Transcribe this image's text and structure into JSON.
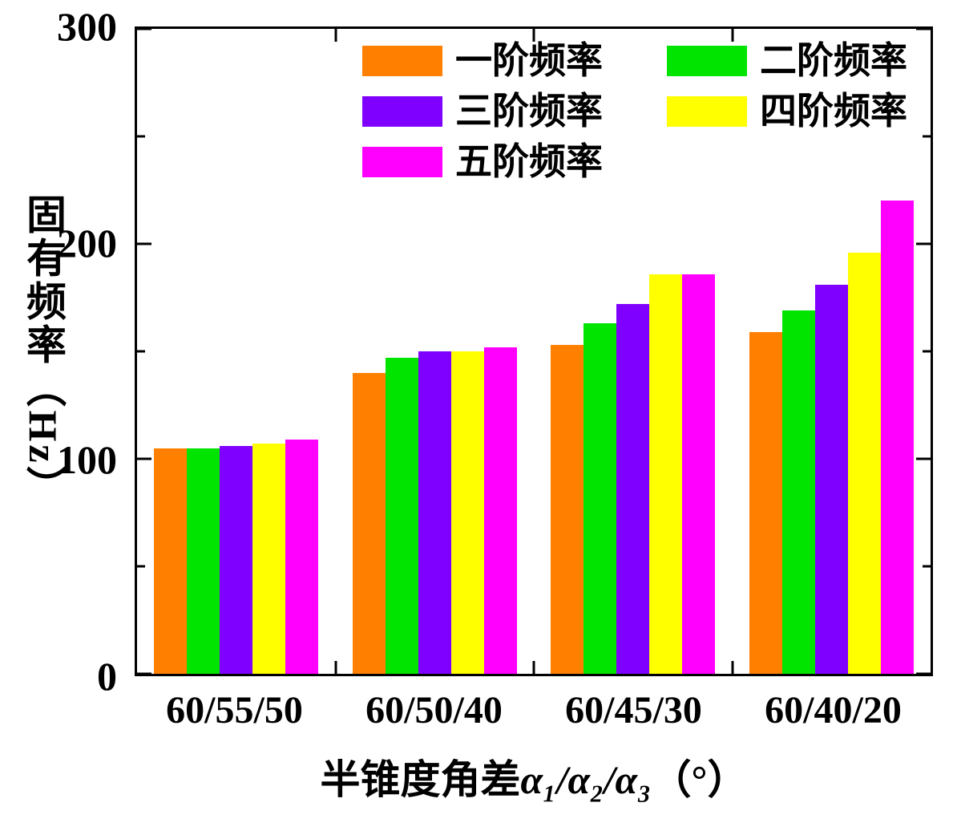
{
  "chart_data": {
    "type": "bar",
    "title": "",
    "categories": [
      "60/55/50",
      "60/50/40",
      "60/45/30",
      "60/40/20"
    ],
    "series": [
      {
        "name": "一阶频率",
        "color": "#FF8000",
        "values": [
          105,
          140,
          153,
          159
        ]
      },
      {
        "name": "二阶频率",
        "color": "#00E400",
        "values": [
          105,
          147,
          163,
          169
        ]
      },
      {
        "name": "三阶频率",
        "color": "#7F00FF",
        "values": [
          106,
          150,
          172,
          181
        ]
      },
      {
        "name": "四阶频率",
        "color": "#FFFF00",
        "values": [
          107,
          150,
          186,
          196
        ]
      },
      {
        "name": "五阶频率",
        "color": "#FF00FF",
        "values": [
          109,
          152,
          186,
          220
        ]
      }
    ],
    "ylabel": "固有频率（Hz）",
    "xlabel": {
      "prefix": "半锥度角差",
      "alphas": "α₁/α₂/α₃",
      "suffix": "（°）"
    },
    "yticks": [
      0,
      100,
      200,
      300
    ],
    "ylim": [
      0,
      300
    ],
    "minor_tick_step": 50,
    "legend_position": "top-inside",
    "grid": "off",
    "axis_color": "#000000"
  }
}
